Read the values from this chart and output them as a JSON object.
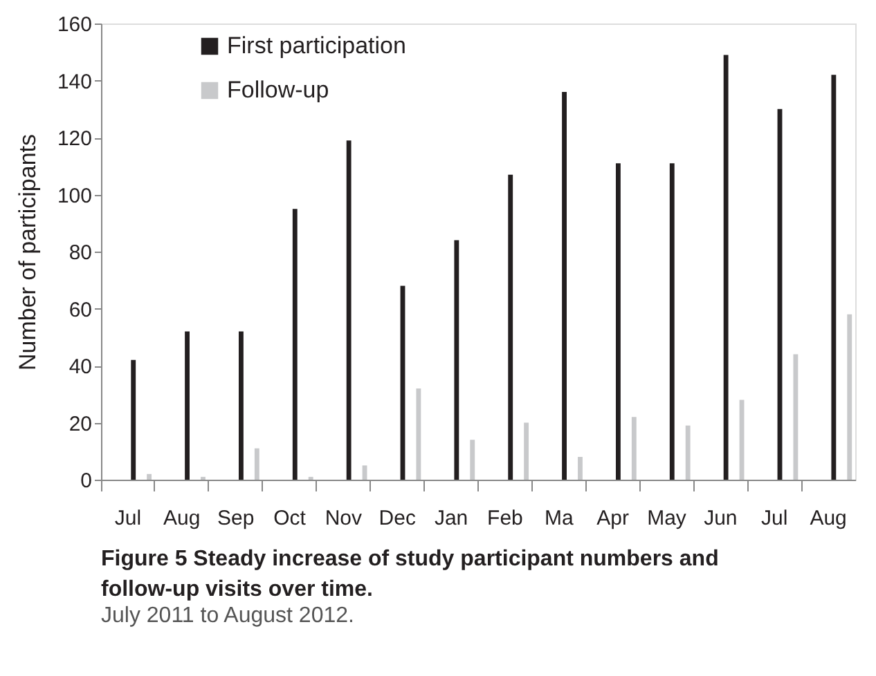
{
  "chart_data": {
    "type": "bar",
    "title": "Figure 5 Steady increase of study participant numbers and follow-up visits over time.",
    "annotations": [
      "July 2011 to August 2012."
    ],
    "ylabel": "Number of participants",
    "categories": [
      "Jul",
      "Aug",
      "Sep",
      "Oct",
      "Nov",
      "Dec",
      "Jan",
      "Feb",
      "Ma",
      "Apr",
      "May",
      "Jun",
      "Jul",
      "Aug"
    ],
    "series": [
      {
        "name": "First participation",
        "color": "#231f20",
        "values": [
          42,
          52,
          52,
          95,
          119,
          68,
          84,
          107,
          136,
          111,
          111,
          149,
          130,
          142
        ]
      },
      {
        "name": "Follow-up",
        "color": "#c8c9cb",
        "values": [
          2,
          1,
          11,
          1,
          5,
          32,
          14,
          20,
          8,
          22,
          19,
          28,
          44,
          58
        ]
      }
    ],
    "ylim": [
      0,
      160
    ],
    "yticks": [
      0,
      20,
      40,
      60,
      80,
      100,
      120,
      140,
      160
    ],
    "grid": false,
    "legend": "top left"
  }
}
